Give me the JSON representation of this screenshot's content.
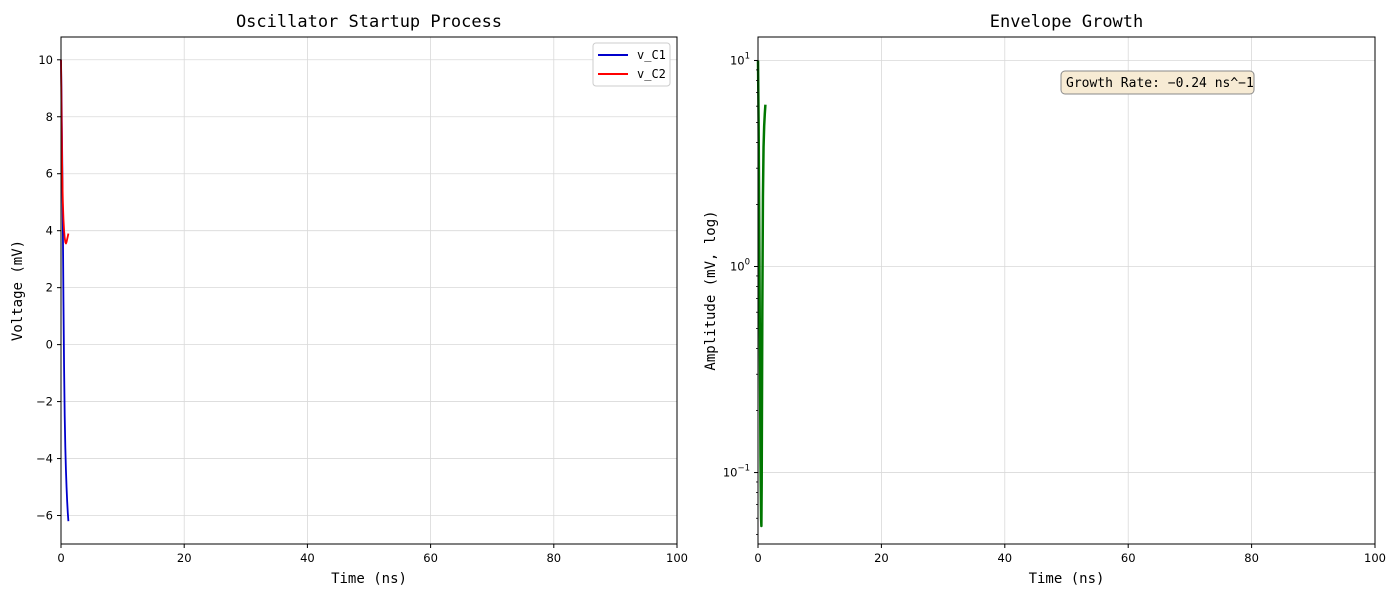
{
  "chart_data": [
    {
      "type": "line",
      "title": "Oscillator Startup Process",
      "xlabel": "Time (ns)",
      "ylabel": "Voltage (mV)",
      "xlim": [
        0,
        100
      ],
      "ylim": [
        -7,
        10.8
      ],
      "xticks": [
        "0",
        "20",
        "40",
        "60",
        "80",
        "100"
      ],
      "yticks": [
        "−6",
        "−4",
        "−2",
        "0",
        "2",
        "4",
        "6",
        "8",
        "10"
      ],
      "grid": true,
      "legend": "top-right",
      "series": [
        {
          "name": "v_C1",
          "color": "#0000cc",
          "x": [
            0,
            0.1,
            0.2,
            0.3,
            0.4,
            0.5,
            0.6,
            0.7,
            0.8,
            0.9,
            1.0,
            1.1,
            1.2
          ],
          "y": [
            10,
            8.5,
            6.5,
            4.2,
            1.5,
            -0.8,
            -2.5,
            -3.6,
            -4.4,
            -5.0,
            -5.5,
            -5.9,
            -6.2
          ]
        },
        {
          "name": "v_C2",
          "color": "#ff0000",
          "x": [
            0,
            0.1,
            0.2,
            0.3,
            0.4,
            0.5,
            0.6,
            0.7,
            0.8,
            0.9,
            1.0,
            1.1,
            1.2
          ],
          "y": [
            10,
            7.8,
            6.0,
            5.0,
            4.4,
            4.0,
            3.75,
            3.6,
            3.55,
            3.6,
            3.7,
            3.8,
            3.9
          ]
        }
      ]
    },
    {
      "type": "line",
      "title": "Envelope Growth",
      "xlabel": "Time (ns)",
      "ylabel": "Amplitude (mV, log)",
      "xlim": [
        0,
        100
      ],
      "ylim": [
        0.045,
        13
      ],
      "yscale": "log",
      "xticks": [
        "0",
        "20",
        "40",
        "60",
        "80",
        "100"
      ],
      "yticks": [
        {
          "base": "10",
          "exp": "1",
          "value": 10
        },
        {
          "base": "10",
          "exp": "0",
          "value": 1
        },
        {
          "base": "10",
          "exp": "−1",
          "value": 0.1
        }
      ],
      "grid": true,
      "annotation": "Growth Rate: −0.24 ns^−1",
      "series": [
        {
          "color": "#007700",
          "x": [
            0,
            0.1,
            0.2,
            0.3,
            0.4,
            0.5,
            0.55,
            0.6,
            0.7,
            0.8,
            0.9,
            1.0,
            1.1,
            1.2
          ],
          "y": [
            10,
            5.0,
            1.6,
            0.45,
            0.12,
            0.06,
            0.055,
            0.09,
            0.6,
            2.2,
            3.8,
            4.8,
            5.5,
            6.1
          ]
        }
      ]
    }
  ]
}
